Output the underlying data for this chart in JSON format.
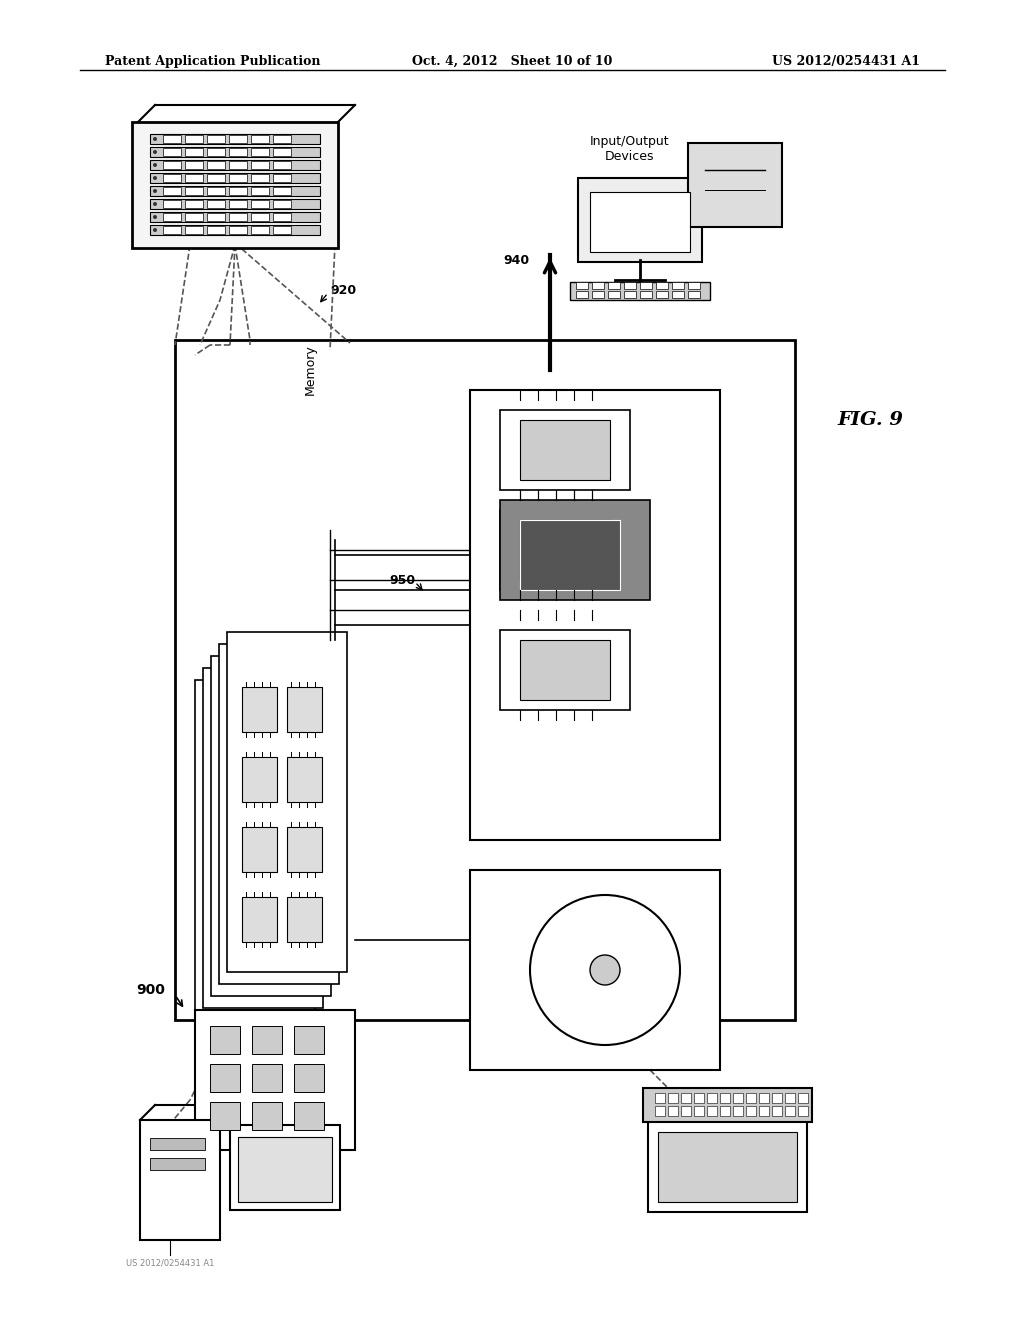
{
  "title_left": "Patent Application Publication",
  "title_center": "Oct. 4, 2012   Sheet 10 of 10",
  "title_right": "US 2012/0254431 A1",
  "fig_label": "FIG. 9",
  "background_color": "#ffffff",
  "line_color": "#000000",
  "light_gray": "#cccccc",
  "mid_gray": "#999999",
  "dark_gray": "#555555",
  "very_light_gray": "#eeeeee"
}
